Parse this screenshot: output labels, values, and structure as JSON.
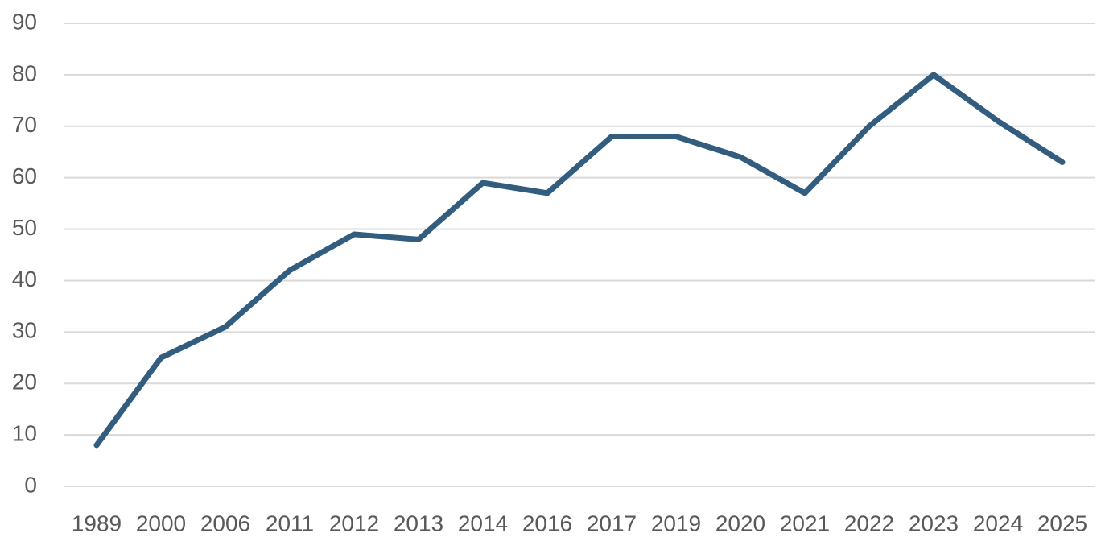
{
  "chart_data": {
    "type": "line",
    "categories": [
      "1989",
      "2000",
      "2006",
      "2011",
      "2012",
      "2013",
      "2014",
      "2016",
      "2017",
      "2019",
      "2020",
      "2021",
      "2022",
      "2023",
      "2024",
      "2025"
    ],
    "values": [
      8,
      25,
      31,
      42,
      49,
      48,
      59,
      57,
      68,
      68,
      64,
      57,
      70,
      80,
      71,
      63
    ],
    "color": "#325d7f",
    "ylim": [
      0,
      90
    ],
    "yticks": [
      0,
      10,
      20,
      30,
      40,
      50,
      60,
      70,
      80,
      90
    ],
    "grid": true
  }
}
